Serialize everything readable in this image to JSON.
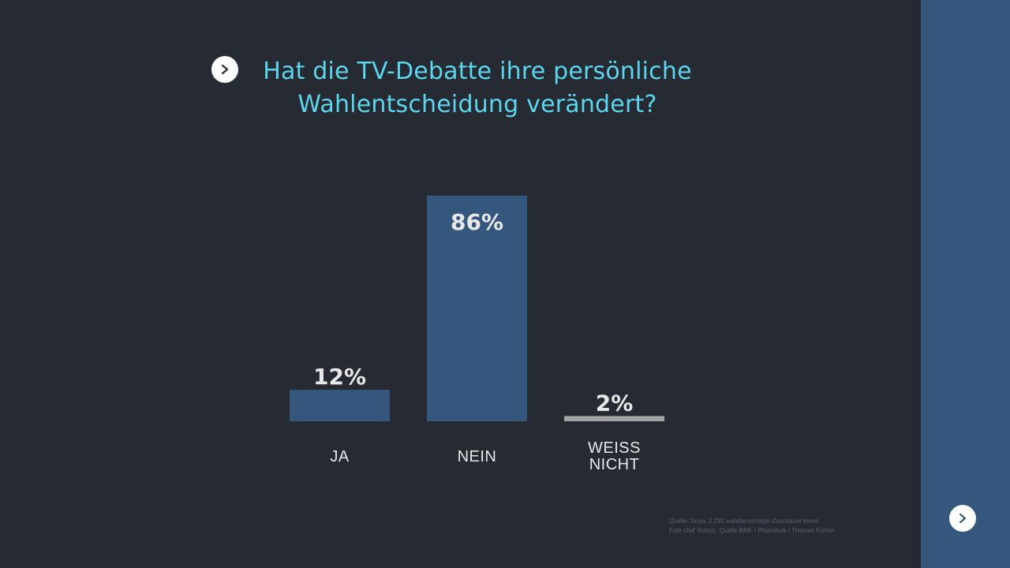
{
  "title": {
    "line1": "Hat die TV-Debatte ihre persönliche",
    "line2": "Wahlentscheidung verändert?"
  },
  "icons": {
    "title_arrow": "chevron-right-icon",
    "side_arrow": "chevron-right-icon"
  },
  "colors": {
    "background": "#262a33",
    "side_panel": "#35577d",
    "title": "#5dd5ec",
    "bar": "#35577d",
    "bar_small": "#a3a3a3",
    "label": "#e8e8e8",
    "source": "#5b6170"
  },
  "chart_data": {
    "type": "bar",
    "title": "Hat die TV-Debatte ihre persönliche Wahlentscheidung verändert?",
    "categories": [
      [
        "JA"
      ],
      [
        "NEIN"
      ],
      [
        "WEISS",
        "NICHT"
      ]
    ],
    "values": [
      12,
      86,
      2
    ],
    "value_labels": [
      "12%",
      "86%",
      "2%"
    ],
    "ylim": [
      0,
      86
    ],
    "grid": false,
    "legend": "none"
  },
  "source": {
    "line1": "Quelle: forsa: 2.291 wahlberechtigte Zuschauer:innen",
    "line2": "Foto Olaf Scholz: Quelle BMF / Photothek / Thomas Köhler"
  }
}
